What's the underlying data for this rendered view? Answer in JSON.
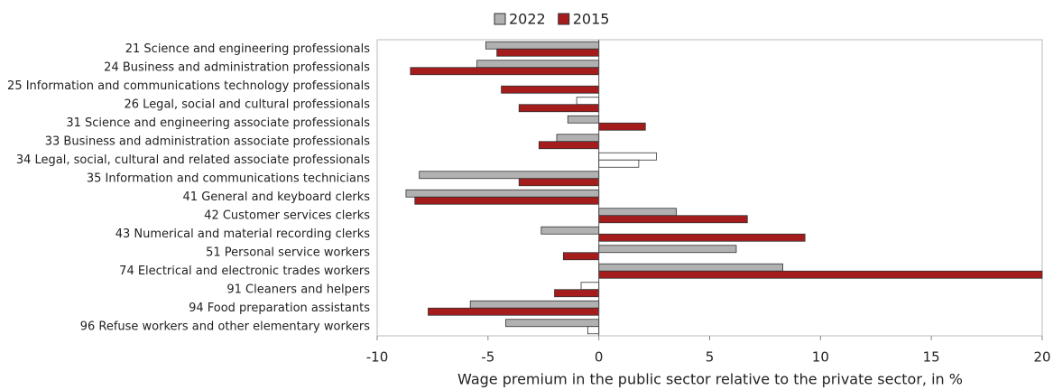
{
  "chart_data": {
    "type": "hbar",
    "x_label": "Wage premium in the public sector relative to the private sector, in %",
    "categories": [
      "21 Science and engineering professionals",
      "24 Business and administration professionals",
      "25 Information and communications technology professionals",
      "26 Legal, social and cultural professionals",
      "31 Science and engineering associate professionals",
      "33 Business and administration associate professionals",
      "34 Legal, social, cultural and related associate professionals",
      "35 Information and communications technicians",
      "41 General and keyboard clerks",
      "42 Customer services clerks",
      "43 Numerical and material recording clerks",
      "51 Personal service workers",
      "74 Electrical and electronic trades workers",
      "91 Cleaners and helpers",
      "94 Food preparation assistants",
      "96 Refuse workers and other elementary workers"
    ],
    "series": [
      {
        "name": "2022",
        "color": "#b1b1b1",
        "values": [
          -5.1,
          -5.5,
          null,
          -1.0,
          -1.4,
          -1.9,
          2.6,
          -8.1,
          -8.7,
          3.5,
          -2.6,
          6.2,
          8.3,
          -0.8,
          -5.8,
          -4.2
        ],
        "colors": [
          "#b1b1b1",
          "#b1b1b1",
          "#b1b1b1",
          "#ffffff",
          "#b1b1b1",
          "#b1b1b1",
          "#ffffff",
          "#b1b1b1",
          "#b1b1b1",
          "#b1b1b1",
          "#b1b1b1",
          "#b1b1b1",
          "#b1b1b1",
          "#ffffff",
          "#b1b1b1",
          "#b1b1b1"
        ]
      },
      {
        "name": "2015",
        "color": "#a51c1c",
        "values": [
          -4.6,
          -8.5,
          -4.4,
          -3.6,
          2.1,
          -2.7,
          1.8,
          -3.6,
          -8.3,
          6.7,
          9.3,
          -1.6,
          20,
          -2.0,
          -7.7,
          -0.5
        ],
        "colors": [
          "#a51c1c",
          "#a51c1c",
          "#a51c1c",
          "#a51c1c",
          "#a51c1c",
          "#a51c1c",
          "#ffffff",
          "#a51c1c",
          "#a51c1c",
          "#a51c1c",
          "#a51c1c",
          "#a51c1c",
          "#a51c1c",
          "#a51c1c",
          "#a51c1c",
          "#ffffff"
        ]
      }
    ],
    "xlim": [
      -10,
      20
    ],
    "xticks": [
      -10,
      -5,
      0,
      5,
      10,
      15,
      20
    ]
  }
}
